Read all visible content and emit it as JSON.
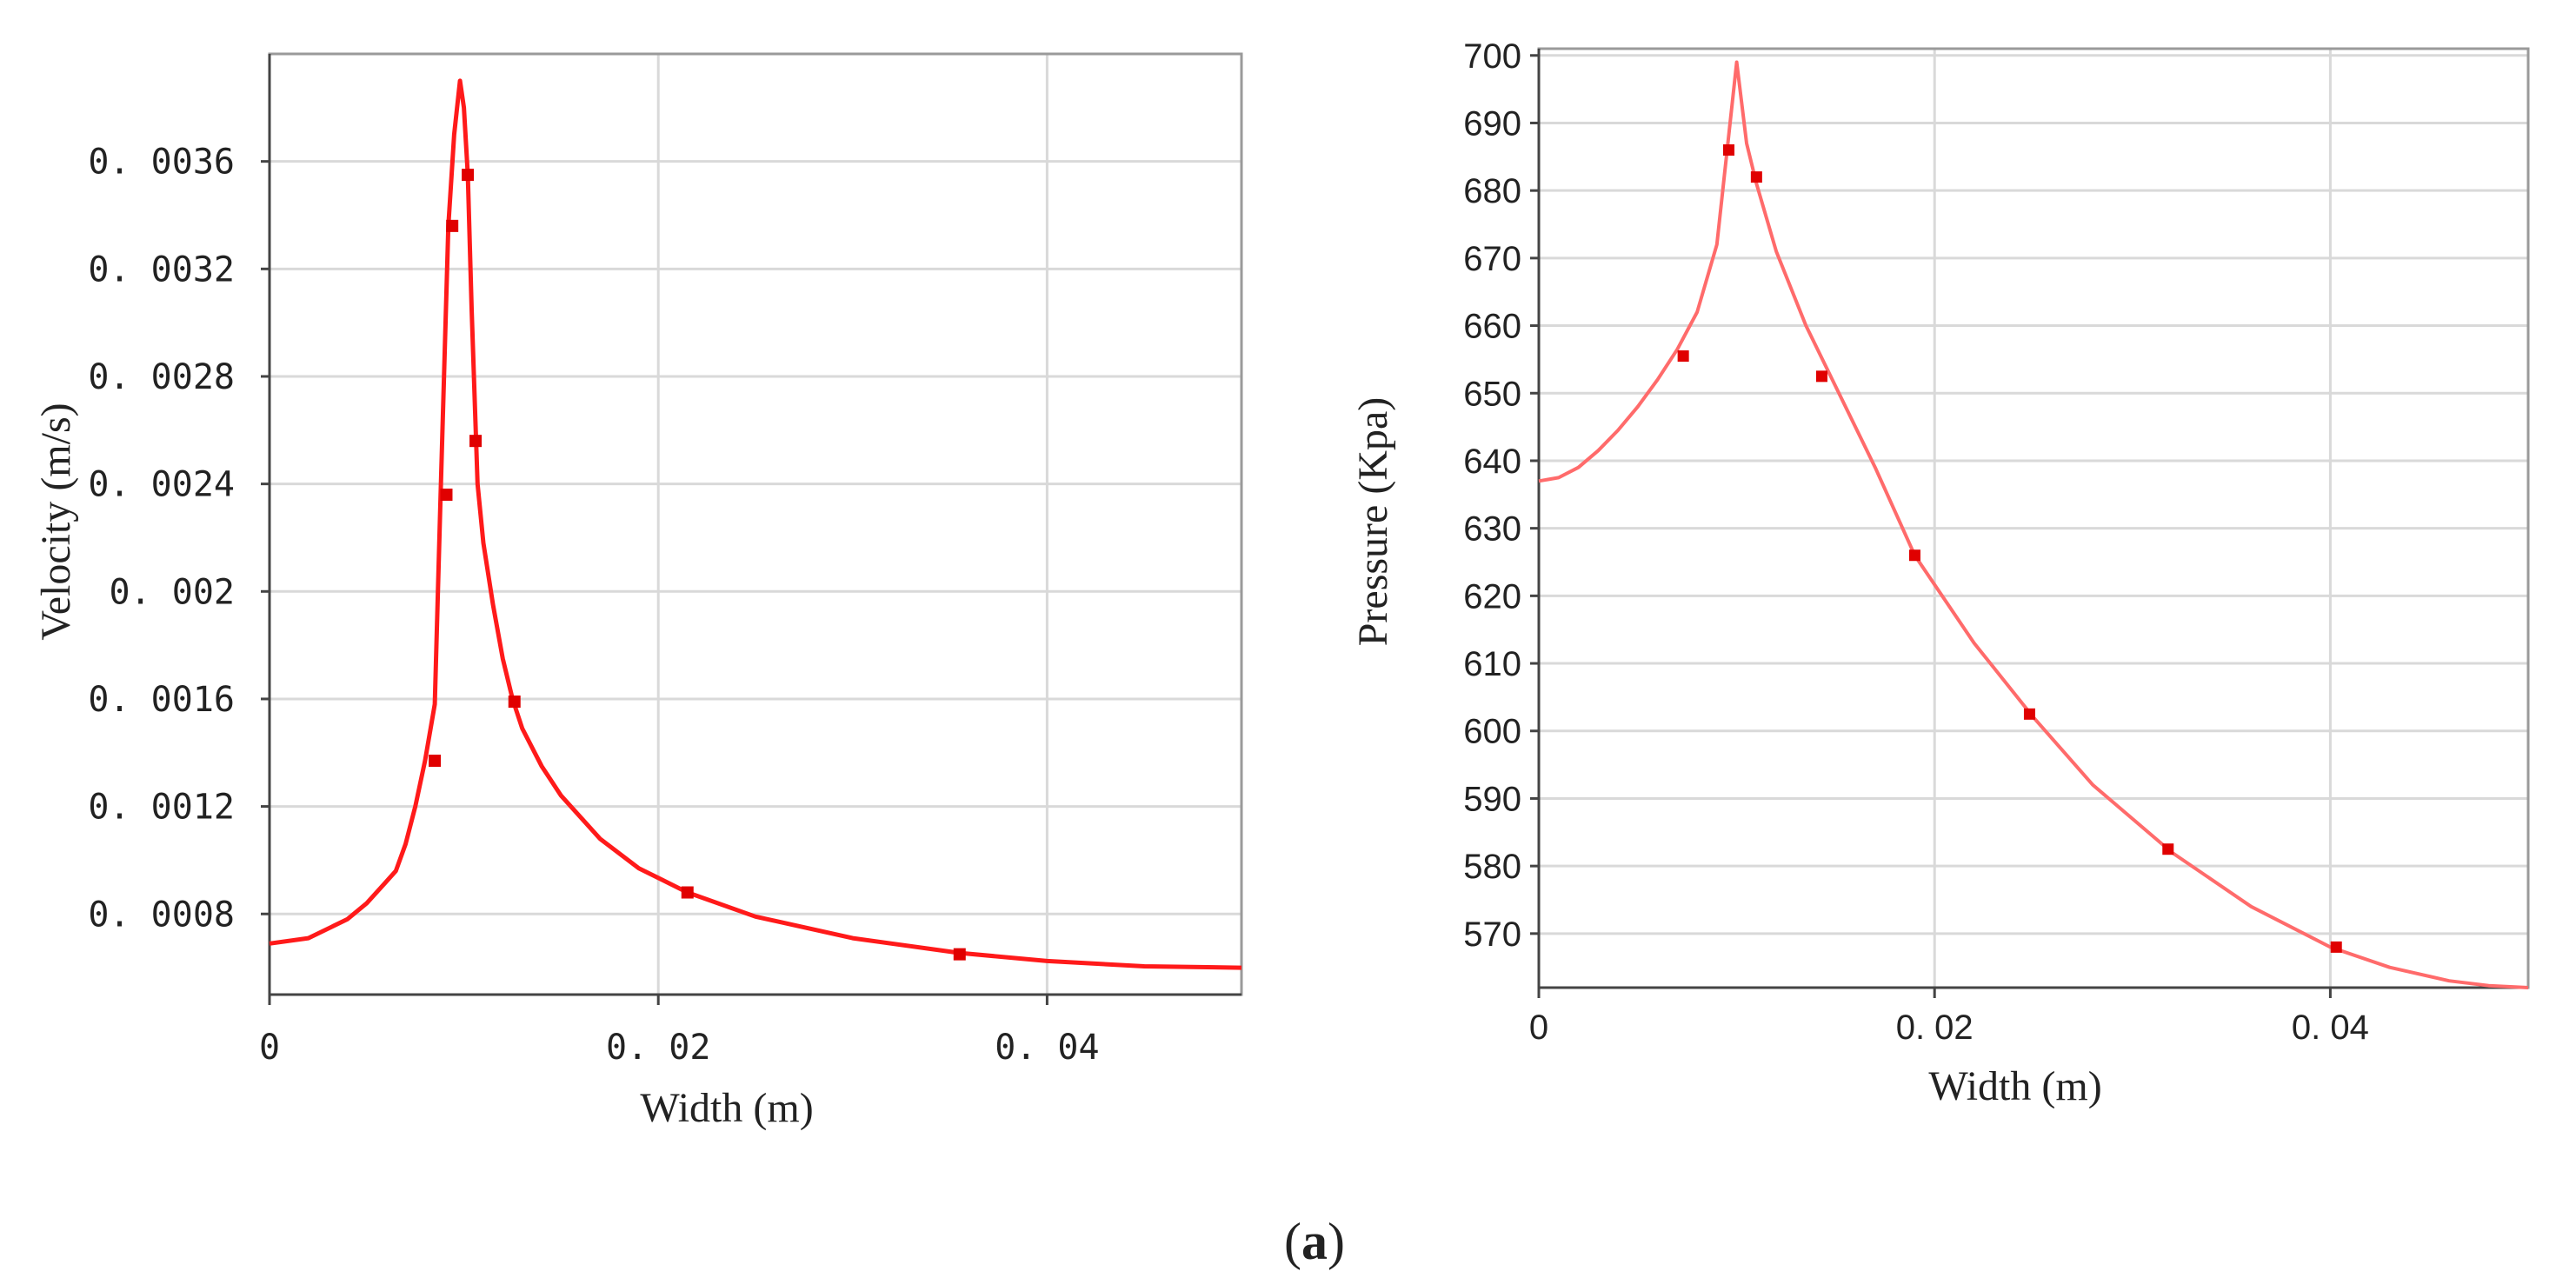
{
  "figure": {
    "caption_open": "(",
    "caption_letter": "a",
    "caption_close": ")"
  },
  "chart_data": [
    {
      "type": "line",
      "title": "",
      "xlabel": "Width (m)",
      "ylabel": "Velocity (m/s)",
      "xlim": [
        0,
        0.05
      ],
      "ylim": [
        0.0005,
        0.004
      ],
      "xticks": [
        0,
        0.02,
        0.04
      ],
      "xtick_labels": [
        "0",
        "0. 02",
        "0. 04"
      ],
      "yticks": [
        0.0008,
        0.0012,
        0.0016,
        0.002,
        0.0024,
        0.0028,
        0.0032,
        0.0036
      ],
      "ytick_labels": [
        "0. 0008",
        "0. 0012",
        "0. 0016",
        "0. 002",
        "0. 0024",
        "0. 0028",
        "0. 0032",
        "0. 0036"
      ],
      "grid": true,
      "color": "#ff1a1a",
      "series": [
        {
          "name": "Velocity",
          "x": [
            0,
            0.002,
            0.004,
            0.005,
            0.006,
            0.0065,
            0.007,
            0.0075,
            0.008,
            0.0085,
            0.0088,
            0.0092,
            0.0095,
            0.0098,
            0.01,
            0.0102,
            0.0104,
            0.0107,
            0.011,
            0.0115,
            0.012,
            0.0125,
            0.013,
            0.014,
            0.015,
            0.017,
            0.019,
            0.0215,
            0.025,
            0.03,
            0.0355,
            0.04,
            0.045,
            0.05
          ],
          "y": [
            0.00069,
            0.00071,
            0.00078,
            0.00084,
            0.00092,
            0.00096,
            0.00106,
            0.0012,
            0.00137,
            0.00158,
            0.00236,
            0.00336,
            0.0037,
            0.0039,
            0.0038,
            0.00355,
            0.00305,
            0.0024,
            0.00218,
            0.00195,
            0.00175,
            0.0016,
            0.00149,
            0.00135,
            0.00124,
            0.00108,
            0.00097,
            0.00088,
            0.00079,
            0.00071,
            0.000655,
            0.000625,
            0.000605,
            0.0006
          ]
        }
      ],
      "markers": {
        "x": [
          0.0085,
          0.0091,
          0.0094,
          0.0102,
          0.0106,
          0.0126,
          0.0215,
          0.0355
        ],
        "y": [
          0.00137,
          0.00236,
          0.00336,
          0.00355,
          0.00256,
          0.00159,
          0.00088,
          0.00065
        ]
      }
    },
    {
      "type": "line",
      "title": "",
      "xlabel": "Width (m)",
      "ylabel": "Pressure (Kpa)",
      "xlim": [
        0,
        0.05
      ],
      "ylim": [
        562,
        701
      ],
      "xticks": [
        0,
        0.02,
        0.04
      ],
      "xtick_labels": [
        "0",
        "0. 02",
        "0. 04"
      ],
      "yticks": [
        570,
        580,
        590,
        600,
        610,
        620,
        630,
        640,
        650,
        660,
        670,
        680,
        690,
        700
      ],
      "ytick_labels": [
        "570",
        "580",
        "590",
        "600",
        "610",
        "620",
        "630",
        "640",
        "650",
        "660",
        "670",
        "680",
        "690",
        "700"
      ],
      "grid": true,
      "color": "#ff6b6b",
      "series": [
        {
          "name": "Pressure",
          "x": [
            0,
            0.001,
            0.002,
            0.003,
            0.004,
            0.005,
            0.006,
            0.007,
            0.008,
            0.009,
            0.0095,
            0.01,
            0.0105,
            0.011,
            0.012,
            0.0135,
            0.015,
            0.017,
            0.019,
            0.022,
            0.025,
            0.028,
            0.032,
            0.036,
            0.04,
            0.043,
            0.046,
            0.048,
            0.05
          ],
          "y": [
            637,
            637.5,
            639,
            641.5,
            644.5,
            648,
            652,
            656.5,
            662,
            672,
            685.5,
            699,
            687,
            681,
            671,
            660,
            651,
            639,
            626,
            613,
            602,
            592,
            582,
            574,
            568,
            565,
            563,
            562.3,
            562
          ]
        }
      ],
      "markers": {
        "x": [
          0.0073,
          0.0096,
          0.011,
          0.0143,
          0.019,
          0.0248,
          0.0318,
          0.0403
        ],
        "y": [
          655.5,
          686,
          682,
          652.5,
          626,
          602.5,
          582.5,
          568
        ]
      }
    }
  ]
}
